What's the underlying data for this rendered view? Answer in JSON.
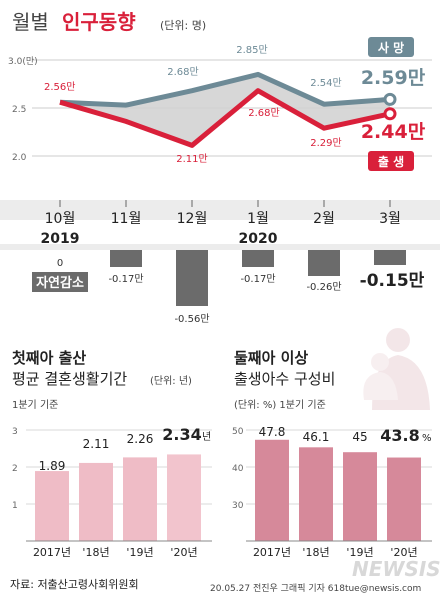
{
  "header": {
    "title_part1": "월별",
    "title_part2": "인구동향",
    "unit": "(단위: 명)"
  },
  "top_chart": {
    "y_ticks": [
      "3.0(만)",
      "2.5",
      "2.0"
    ],
    "badge_death": "사 망",
    "badge_birth": "출 생",
    "colors": {
      "death": "#6d8a96",
      "birth": "#d9203a",
      "fill": "#d3d3d3"
    },
    "death_labels": [
      "",
      "2.68만",
      "2.85만",
      "2.54만",
      "2.59만"
    ],
    "birth_labels": [
      "2.56만",
      "2.11만",
      "2.68만",
      "2.29만",
      "2.44만"
    ]
  },
  "months": [
    "10월",
    "11월",
    "12월",
    "1월",
    "2월",
    "3월"
  ],
  "years": [
    "2019",
    "",
    "",
    "2020",
    "",
    ""
  ],
  "decrease": {
    "label": "자연감소",
    "value_labels": [
      "0",
      "-0.17만",
      "-0.56만",
      "-0.17만",
      "-0.26만",
      "-0.15만"
    ]
  },
  "section_left": {
    "title": "첫째아 출산",
    "subtitle_main": "평균 결혼생활기간",
    "subtitle_unit": "(단위: 년)",
    "note": "1분기 기준",
    "y_ticks": [
      "3",
      "2",
      "1"
    ],
    "categories": [
      "2017년",
      "'18년",
      "'19년",
      "'20년"
    ],
    "value_labels": [
      "1.89",
      "2.11",
      "2.26",
      "2.34"
    ],
    "last_unit": "년",
    "colors": {
      "bar": "#efbcc6",
      "bar_last": "#f2c4cd"
    }
  },
  "section_right": {
    "title": "둘째아 이상",
    "subtitle": "출생아수 구성비",
    "note": "(단위: %) 1분기 기준",
    "y_ticks": [
      "50",
      "40",
      "30"
    ],
    "categories": [
      "2017년",
      "'18년",
      "'19년",
      "'20년"
    ],
    "value_labels": [
      "47.8",
      "46.1",
      "45",
      "43.8"
    ],
    "last_unit": "%",
    "colors": {
      "bar": "#d6899a"
    }
  },
  "footer": {
    "source": "자료: 저출산고령사회위원회",
    "credit": "20.05.27 전진우 그래픽 기자 618tue@newsis.com",
    "logo": "NEWSIS"
  },
  "chart_data": [
    {
      "type": "line",
      "title": "월별 인구동향",
      "categories": [
        "10월 2019",
        "11월",
        "12월",
        "1월 2020",
        "2월",
        "3월"
      ],
      "ylabel": "(단위: 명)",
      "ylim": [
        2.0,
        3.0
      ],
      "series": [
        {
          "name": "사 망",
          "values": [
            2.56,
            2.53,
            2.68,
            2.85,
            2.54,
            2.59
          ]
        },
        {
          "name": "출 생",
          "values": [
            2.56,
            2.36,
            2.11,
            2.68,
            2.29,
            2.44
          ]
        }
      ]
    },
    {
      "type": "bar",
      "categories": [
        "10월",
        "11월",
        "12월",
        "1월",
        "2월",
        "3월"
      ],
      "series": [
        {
          "name": "자연감소",
          "values": [
            0,
            -0.17,
            -0.56,
            -0.17,
            -0.26,
            -0.15
          ]
        }
      ]
    },
    {
      "type": "bar",
      "title": "첫째아 출산 평균 결혼생활기간",
      "categories": [
        "2017년",
        "'18년",
        "'19년",
        "'20년"
      ],
      "values": [
        1.89,
        2.11,
        2.26,
        2.34
      ],
      "ylim": [
        0,
        3
      ]
    },
    {
      "type": "bar",
      "title": "둘째아 이상 출생아수 구성비",
      "categories": [
        "2017년",
        "'18년",
        "'19년",
        "'20년"
      ],
      "values": [
        47.8,
        46.1,
        45,
        43.8
      ],
      "ylim": [
        25,
        50
      ]
    }
  ]
}
